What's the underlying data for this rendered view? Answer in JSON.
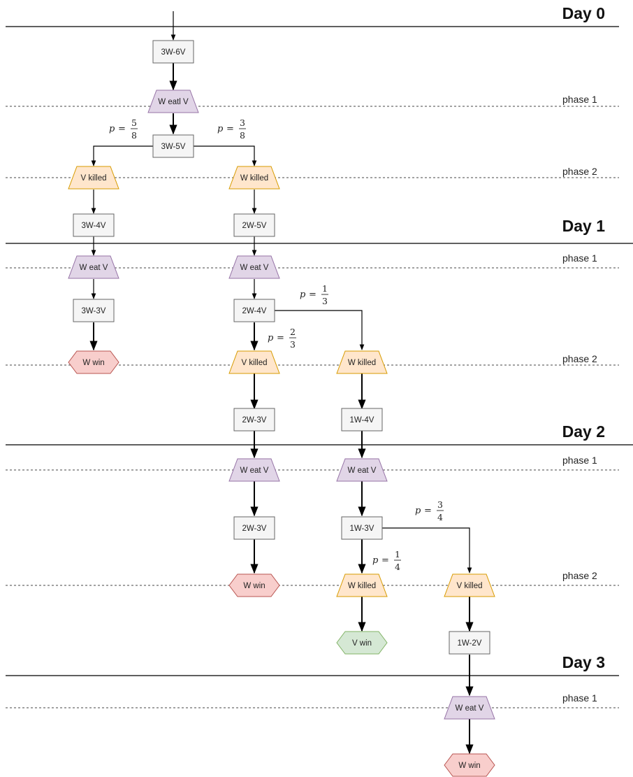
{
  "days": [
    "Day 0",
    "Day 1",
    "Day 2",
    "Day 3"
  ],
  "phases": [
    "phase 1",
    "phase 2",
    "phase 1",
    "phase 2",
    "phase 1",
    "phase 2",
    "phase 1"
  ],
  "nodes": [
    {
      "id": "n1",
      "shape": "rect",
      "label": "3W-6V"
    },
    {
      "id": "n2",
      "shape": "trap",
      "label": "W eatl V"
    },
    {
      "id": "n3",
      "shape": "rect",
      "label": "3W-5V"
    },
    {
      "id": "n4",
      "shape": "trap",
      "label": "V killed"
    },
    {
      "id": "n5",
      "shape": "trap",
      "label": "W killed"
    },
    {
      "id": "n6",
      "shape": "rect",
      "label": "3W-4V"
    },
    {
      "id": "n7",
      "shape": "rect",
      "label": "2W-5V"
    },
    {
      "id": "n8",
      "shape": "trap",
      "label": "W eat V"
    },
    {
      "id": "n9",
      "shape": "trap",
      "label": "W eat V"
    },
    {
      "id": "n10",
      "shape": "rect",
      "label": "3W-3V"
    },
    {
      "id": "n11",
      "shape": "rect",
      "label": "2W-4V"
    },
    {
      "id": "n12",
      "shape": "hex",
      "label": "W win"
    },
    {
      "id": "n13",
      "shape": "trap",
      "label": "V killed"
    },
    {
      "id": "n14",
      "shape": "trap",
      "label": "W killed"
    },
    {
      "id": "n15",
      "shape": "rect",
      "label": "2W-3V"
    },
    {
      "id": "n16",
      "shape": "rect",
      "label": "1W-4V"
    },
    {
      "id": "n17",
      "shape": "trap",
      "label": "W eat V"
    },
    {
      "id": "n18",
      "shape": "trap",
      "label": "W eat V"
    },
    {
      "id": "n19",
      "shape": "rect",
      "label": "2W-3V"
    },
    {
      "id": "n20",
      "shape": "rect",
      "label": "1W-3V"
    },
    {
      "id": "n21",
      "shape": "hex",
      "label": "W win"
    },
    {
      "id": "n22",
      "shape": "trap",
      "label": "W killed"
    },
    {
      "id": "n23",
      "shape": "trap",
      "label": "V killed"
    },
    {
      "id": "n24",
      "shape": "hex",
      "label": "V win"
    },
    {
      "id": "n25",
      "shape": "rect",
      "label": "1W-2V"
    },
    {
      "id": "n26",
      "shape": "trap",
      "label": "W eat V"
    },
    {
      "id": "n27",
      "shape": "hex",
      "label": "W win"
    }
  ],
  "probabilities": [
    {
      "var": "p",
      "eq": "=",
      "num": "5",
      "den": "8"
    },
    {
      "var": "p",
      "eq": "=",
      "num": "3",
      "den": "8"
    },
    {
      "var": "p",
      "eq": "=",
      "num": "1",
      "den": "3"
    },
    {
      "var": "p",
      "eq": "=",
      "num": "2",
      "den": "3"
    },
    {
      "var": "p",
      "eq": "=",
      "num": "3",
      "den": "4"
    },
    {
      "var": "p",
      "eq": "=",
      "num": "1",
      "den": "4"
    }
  ],
  "colors": {
    "rect_fill": "#f5f5f5",
    "rect_stroke": "#666666",
    "trap_purple_fill": "#e1d5e7",
    "trap_purple_stroke": "#9673a6",
    "trap_orange_fill": "#ffe6cc",
    "trap_orange_stroke": "#d79b00",
    "hex_red_fill": "#f8cecc",
    "hex_red_stroke": "#b85450",
    "hex_green_fill": "#d5e8d4",
    "hex_green_stroke": "#82b366",
    "line": "#000000"
  }
}
